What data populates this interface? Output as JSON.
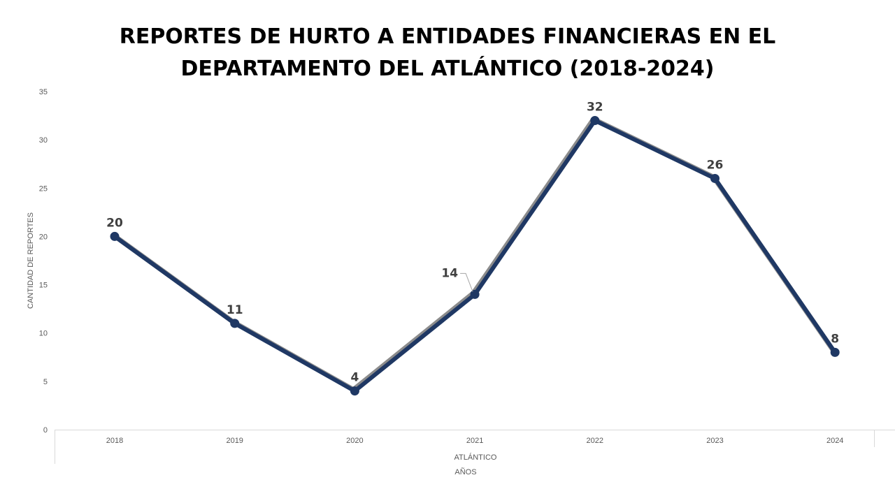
{
  "chart_data": {
    "type": "line",
    "title": "REPORTES DE HURTO A ENTIDADES FINANCIERAS EN EL DEPARTAMENTO DEL ATLÁNTICO (2018-2024)",
    "categories": [
      "2018",
      "2019",
      "2020",
      "2021",
      "2022",
      "2023",
      "2024"
    ],
    "series": [
      {
        "name": "",
        "values": [
          20,
          11,
          4,
          14,
          32,
          26,
          8
        ]
      }
    ],
    "category_group_label": "ATLÁNTICO",
    "xlabel": "AÑOS",
    "ylabel": "CANTIDAD DE REPORTES",
    "ylim": [
      0,
      35
    ],
    "yticks": [
      0,
      5,
      10,
      15,
      20,
      25,
      30,
      35
    ],
    "grid": false,
    "data_labels": true,
    "colors": {
      "line": "#1F3864",
      "shadow": "#7F7F7F",
      "axis": "#D9D9D9"
    }
  }
}
